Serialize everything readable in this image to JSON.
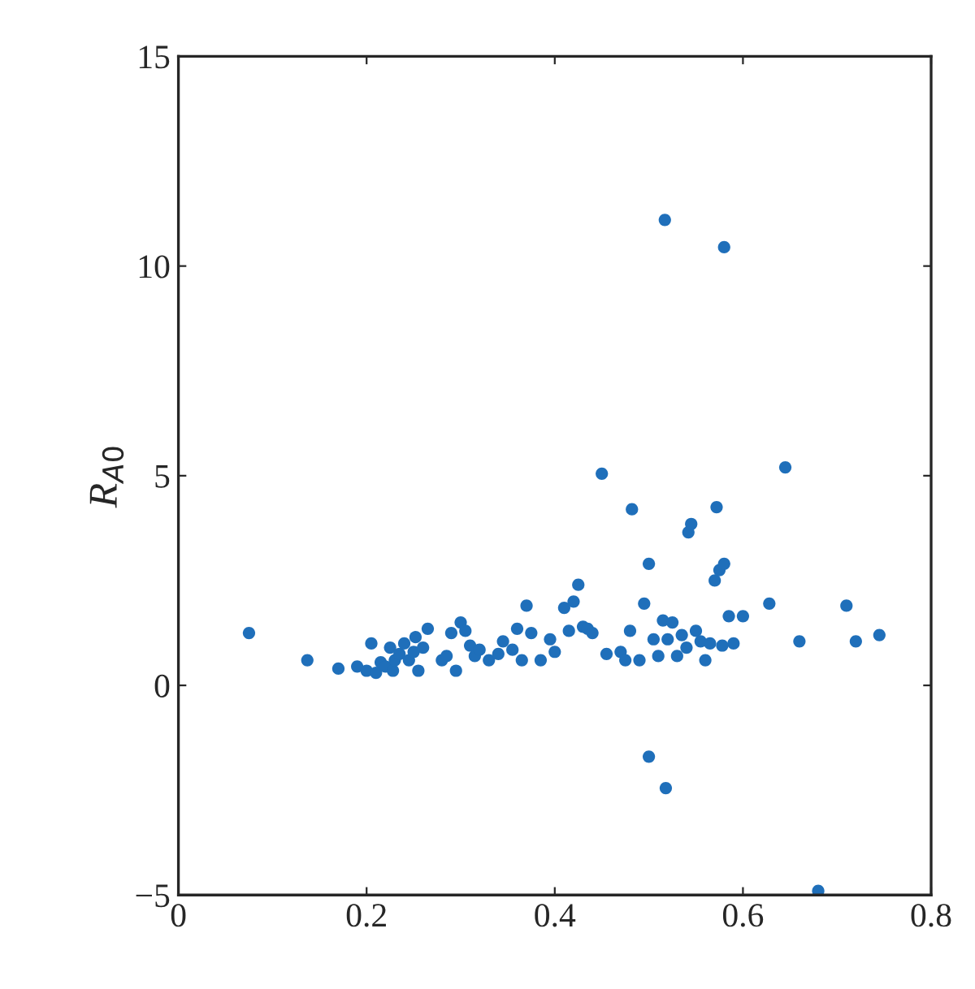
{
  "chart_data": {
    "type": "scatter",
    "ylabel": "R$_{A0}$",
    "xlim": [
      0,
      0.8
    ],
    "ylim": [
      -5,
      15
    ],
    "xticks": [
      0,
      0.2,
      0.4,
      0.6,
      0.8
    ],
    "yticks": [
      {
        "value": -5,
        "label": "−5"
      },
      0,
      5,
      10,
      15
    ],
    "grid": false,
    "marker": "circle",
    "series": [
      {
        "color": "#1f6fba",
        "x": [
          0.075,
          0.137,
          0.17,
          0.19,
          0.2,
          0.205,
          0.21,
          0.215,
          0.22,
          0.225,
          0.228,
          0.23,
          0.235,
          0.24,
          0.245,
          0.25,
          0.252,
          0.255,
          0.26,
          0.265,
          0.28,
          0.285,
          0.29,
          0.295,
          0.3,
          0.305,
          0.31,
          0.315,
          0.32,
          0.33,
          0.34,
          0.345,
          0.355,
          0.36,
          0.365,
          0.37,
          0.375,
          0.385,
          0.395,
          0.4,
          0.41,
          0.415,
          0.42,
          0.425,
          0.43,
          0.435,
          0.44,
          0.45,
          0.455,
          0.47,
          0.475,
          0.48,
          0.482,
          0.49,
          0.495,
          0.5,
          0.5,
          0.505,
          0.51,
          0.515,
          0.517,
          0.518,
          0.52,
          0.525,
          0.53,
          0.535,
          0.54,
          0.542,
          0.545,
          0.55,
          0.555,
          0.56,
          0.565,
          0.57,
          0.572,
          0.575,
          0.58,
          0.58,
          0.585,
          0.59,
          0.578,
          0.6,
          0.628,
          0.645,
          0.66,
          0.68,
          0.71,
          0.72,
          0.745
        ],
        "values": [
          1.25,
          0.6,
          0.4,
          0.45,
          0.35,
          1.0,
          0.3,
          0.55,
          0.45,
          0.9,
          0.35,
          0.6,
          0.75,
          1.0,
          0.6,
          0.8,
          1.15,
          0.35,
          0.9,
          1.35,
          0.6,
          0.7,
          1.25,
          0.35,
          1.5,
          1.3,
          0.95,
          0.7,
          0.85,
          0.6,
          0.75,
          1.05,
          0.85,
          1.35,
          0.6,
          1.9,
          1.25,
          0.6,
          1.1,
          0.8,
          1.85,
          1.3,
          2.0,
          2.4,
          1.4,
          1.35,
          1.25,
          5.05,
          0.75,
          0.8,
          0.6,
          1.3,
          4.2,
          0.6,
          1.95,
          2.9,
          -1.7,
          1.1,
          0.7,
          1.55,
          11.1,
          -2.45,
          1.1,
          1.5,
          0.7,
          1.2,
          0.9,
          3.65,
          3.85,
          1.3,
          1.05,
          0.6,
          1.0,
          2.5,
          4.25,
          2.75,
          10.45,
          2.9,
          1.65,
          1.0,
          0.95,
          1.65,
          1.95,
          5.2,
          1.05,
          -4.9,
          1.9,
          1.05,
          1.2
        ]
      }
    ]
  }
}
